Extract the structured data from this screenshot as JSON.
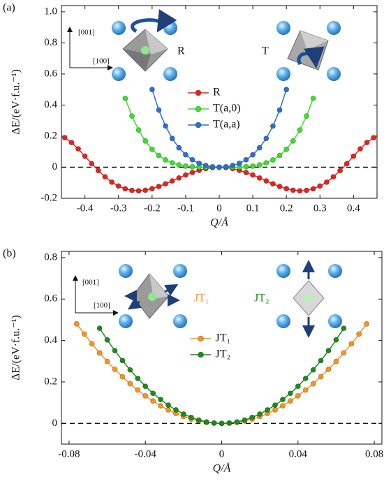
{
  "chart_data": [
    {
      "type": "line",
      "panel_label": "(a)",
      "x_label": "Q/Å",
      "y_label": "ΔE/(eV·f.u.⁻¹)",
      "xlim": [
        -0.47,
        0.47
      ],
      "ylim": [
        -0.2,
        1.04
      ],
      "xticks": [
        -0.4,
        -0.3,
        -0.2,
        -0.1,
        0,
        0.1,
        0.2,
        0.3,
        0.4
      ],
      "yticks": [
        -0.2,
        0,
        0.2,
        0.4,
        0.6,
        0.8,
        {
          "value": 1,
          "label": "1.0"
        }
      ],
      "hline": 0,
      "legend": "center",
      "annotations": [
        "[001]",
        "[100]",
        "R",
        "T"
      ],
      "series": [
        {
          "name": "R",
          "color": "#e8211c",
          "x": [
            -0.46,
            -0.44,
            -0.42,
            -0.4,
            -0.38,
            -0.36,
            -0.34,
            -0.32,
            -0.3,
            -0.28,
            -0.26,
            -0.24,
            -0.22,
            -0.2,
            -0.18,
            -0.16,
            -0.14,
            -0.12,
            -0.1,
            -0.08,
            -0.06,
            -0.04,
            -0.02,
            0,
            0.02,
            0.04,
            0.06,
            0.08,
            0.1,
            0.12,
            0.14,
            0.16,
            0.18,
            0.2,
            0.22,
            0.24,
            0.26,
            0.28,
            0.3,
            0.32,
            0.34,
            0.36,
            0.38,
            0.4,
            0.42,
            0.44,
            0.46
          ],
          "values": [
            0.19,
            0.159,
            0.118,
            0.071,
            0.023,
            -0.022,
            -0.062,
            -0.096,
            -0.121,
            -0.139,
            -0.149,
            -0.152,
            -0.148,
            -0.138,
            -0.124,
            -0.107,
            -0.088,
            -0.069,
            -0.05,
            -0.034,
            -0.02,
            -0.009,
            -0.002,
            0,
            -0.002,
            -0.009,
            -0.02,
            -0.034,
            -0.05,
            -0.069,
            -0.088,
            -0.107,
            -0.124,
            -0.138,
            -0.148,
            -0.152,
            -0.149,
            -0.139,
            -0.121,
            -0.096,
            -0.062,
            -0.022,
            0.023,
            0.071,
            0.118,
            0.159,
            0.19
          ]
        },
        {
          "name": "T(a,0)",
          "color": "#3be02c",
          "x": [
            -0.28,
            -0.26,
            -0.24,
            -0.22,
            -0.2,
            -0.18,
            -0.16,
            -0.14,
            -0.12,
            -0.1,
            -0.08,
            -0.06,
            -0.04,
            -0.02,
            0,
            0.02,
            0.04,
            0.06,
            0.08,
            0.1,
            0.12,
            0.14,
            0.16,
            0.18,
            0.2,
            0.22,
            0.24,
            0.26,
            0.28
          ],
          "values": [
            0.443,
            0.329,
            0.239,
            0.169,
            0.115,
            0.076,
            0.047,
            0.028,
            0.015,
            0.007,
            0.003,
            0.001,
            0,
            0,
            0,
            0,
            0,
            0.001,
            0.003,
            0.007,
            0.015,
            0.028,
            0.047,
            0.076,
            0.115,
            0.169,
            0.239,
            0.329,
            0.443
          ]
        },
        {
          "name": "T(a,a)",
          "color": "#2a6fd1",
          "x": [
            -0.2,
            -0.18,
            -0.16,
            -0.14,
            -0.12,
            -0.1,
            -0.08,
            -0.06,
            -0.04,
            -0.02,
            0,
            0.02,
            0.04,
            0.06,
            0.08,
            0.1,
            0.12,
            0.14,
            0.16,
            0.18,
            0.2
          ],
          "values": [
            0.5,
            0.368,
            0.265,
            0.185,
            0.125,
            0.08,
            0.048,
            0.025,
            0.011,
            0.003,
            0,
            0.003,
            0.011,
            0.025,
            0.048,
            0.08,
            0.125,
            0.185,
            0.265,
            0.368,
            0.5
          ]
        }
      ]
    },
    {
      "type": "line",
      "panel_label": "(b)",
      "x_label": "Q/Å",
      "y_label": "ΔE/(eV·f.u.⁻¹)",
      "xlim": [
        -0.084,
        0.084
      ],
      "ylim": [
        -0.1,
        0.83
      ],
      "xticks": [
        -0.08,
        -0.04,
        0,
        0.04,
        0.08
      ],
      "yticks": [
        0,
        0.2,
        0.4,
        0.6,
        0.8
      ],
      "hline": 0,
      "legend": "center",
      "annotations": [
        "[001]",
        "[100]",
        "JT₁",
        "JT₂"
      ],
      "series": [
        {
          "name": "JT₁",
          "color": "#f7941d",
          "x": [
            -0.076,
            -0.072,
            -0.068,
            -0.064,
            -0.06,
            -0.056,
            -0.052,
            -0.048,
            -0.044,
            -0.04,
            -0.036,
            -0.032,
            -0.028,
            -0.024,
            -0.02,
            -0.016,
            -0.012,
            -0.008,
            -0.004,
            0,
            0.004,
            0.008,
            0.012,
            0.016,
            0.02,
            0.024,
            0.028,
            0.032,
            0.036,
            0.04,
            0.044,
            0.048,
            0.052,
            0.056,
            0.06,
            0.064,
            0.068,
            0.072,
            0.076
          ],
          "values": [
            0.48,
            0.431,
            0.384,
            0.34,
            0.299,
            0.261,
            0.225,
            0.191,
            0.161,
            0.133,
            0.108,
            0.085,
            0.065,
            0.048,
            0.033,
            0.021,
            0.012,
            0.005,
            0.001,
            0,
            0.001,
            0.005,
            0.012,
            0.021,
            0.033,
            0.048,
            0.065,
            0.085,
            0.108,
            0.133,
            0.161,
            0.191,
            0.225,
            0.261,
            0.299,
            0.34,
            0.384,
            0.431,
            0.48
          ]
        },
        {
          "name": "JT₂",
          "color": "#1a8c1a",
          "x": [
            -0.064,
            -0.06,
            -0.056,
            -0.052,
            -0.048,
            -0.044,
            -0.04,
            -0.036,
            -0.032,
            -0.028,
            -0.024,
            -0.02,
            -0.016,
            -0.012,
            -0.008,
            -0.004,
            0,
            0.004,
            0.008,
            0.012,
            0.016,
            0.02,
            0.024,
            0.028,
            0.032,
            0.036,
            0.04,
            0.044,
            0.048,
            0.052,
            0.056,
            0.06,
            0.064
          ],
          "values": [
            0.459,
            0.403,
            0.351,
            0.303,
            0.258,
            0.217,
            0.179,
            0.145,
            0.115,
            0.088,
            0.065,
            0.045,
            0.029,
            0.016,
            0.007,
            0.002,
            0,
            0.002,
            0.007,
            0.016,
            0.029,
            0.045,
            0.065,
            0.088,
            0.115,
            0.145,
            0.179,
            0.217,
            0.258,
            0.303,
            0.351,
            0.403,
            0.459
          ]
        }
      ]
    }
  ]
}
